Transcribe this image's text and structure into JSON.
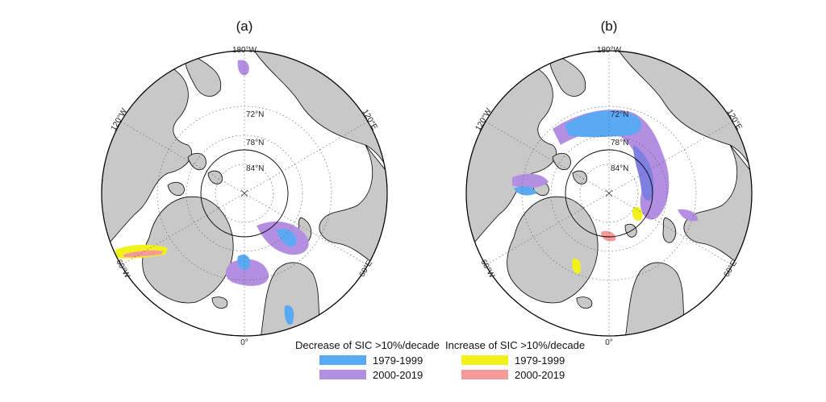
{
  "panels": [
    {
      "label": "(a)",
      "meridians": {
        "top": "180°W",
        "upper_left": "120°W",
        "upper_right": "120°E",
        "lower_left": "60°W",
        "lower_right": "60°E",
        "bottom": "0°"
      },
      "parallels": [
        "72°N",
        "78°N",
        "84°N"
      ]
    },
    {
      "label": "(b)",
      "meridians": {
        "top": "180°W",
        "upper_left": "120°W",
        "upper_right": "120°E",
        "lower_left": "60°W",
        "lower_right": "60°E",
        "bottom": "0°"
      },
      "parallels": [
        "72°N",
        "78°N",
        "84°N"
      ]
    }
  ],
  "legend": {
    "decrease": {
      "title": "Decrease of SIC >10%/decade",
      "items": [
        {
          "label": "1979-1999",
          "color": "#5aa9f5"
        },
        {
          "label": "2000-2019",
          "color": "#b48ee0"
        }
      ]
    },
    "increase": {
      "title": "Increase of SIC >10%/decade",
      "items": [
        {
          "label": "1979-1999",
          "color": "#f2f21a"
        },
        {
          "label": "2000-2019",
          "color": "#f79a9a"
        }
      ]
    }
  },
  "colors": {
    "land": "#c8c8c8",
    "ocean": "#ffffff",
    "coast": "#000000",
    "overlap": "#7f7fe0"
  }
}
